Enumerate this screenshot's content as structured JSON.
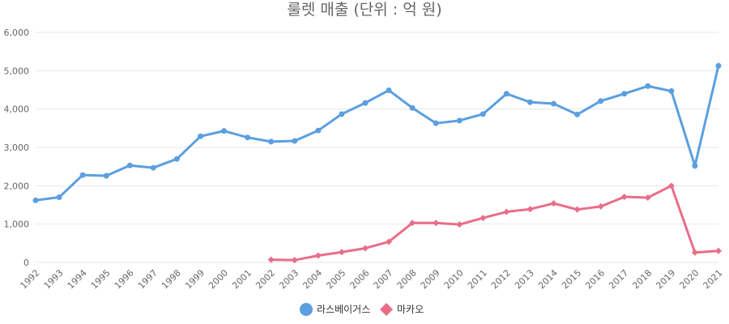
{
  "chart_data": {
    "type": "line",
    "title": "룰렛 매출 (단위 : 억 원)",
    "xlabel": "",
    "ylabel": "",
    "categories": [
      "1992",
      "1993",
      "1994",
      "1995",
      "1996",
      "1997",
      "1998",
      "1999",
      "2000",
      "2001",
      "2002",
      "2003",
      "2004",
      "2005",
      "2006",
      "2007",
      "2008",
      "2009",
      "2010",
      "2011",
      "2012",
      "2013",
      "2014",
      "2015",
      "2016",
      "2017",
      "2018",
      "2019",
      "2020",
      "2021"
    ],
    "ylim": [
      0,
      6000
    ],
    "yticks": [
      {
        "value": 0,
        "label": "0"
      },
      {
        "value": 1000,
        "label": "1,000"
      },
      {
        "value": 2000,
        "label": "2,000"
      },
      {
        "value": 3000,
        "label": "3,000"
      },
      {
        "value": 4000,
        "label": "4,000"
      },
      {
        "value": 5000,
        "label": "5,000"
      },
      {
        "value": 6000,
        "label": "6,000"
      }
    ],
    "grid": true,
    "legend_position": "bottom-center",
    "series": [
      {
        "name": "라스베이거스",
        "color": "#5b9fe0",
        "marker": "circle",
        "values": [
          1620,
          1700,
          2280,
          2260,
          2530,
          2470,
          2700,
          3290,
          3430,
          3260,
          3150,
          3170,
          3440,
          3870,
          4160,
          4490,
          4030,
          3630,
          3700,
          3870,
          4400,
          4180,
          4140,
          3860,
          4210,
          4400,
          4600,
          4470,
          2520,
          5130
        ]
      },
      {
        "name": "마카오",
        "color": "#e96d88",
        "marker": "diamond",
        "values": [
          null,
          null,
          null,
          null,
          null,
          null,
          null,
          null,
          null,
          null,
          70,
          60,
          180,
          270,
          370,
          540,
          1030,
          1030,
          990,
          1160,
          1320,
          1390,
          1540,
          1380,
          1460,
          1710,
          1690,
          2000,
          260,
          300
        ]
      }
    ]
  }
}
